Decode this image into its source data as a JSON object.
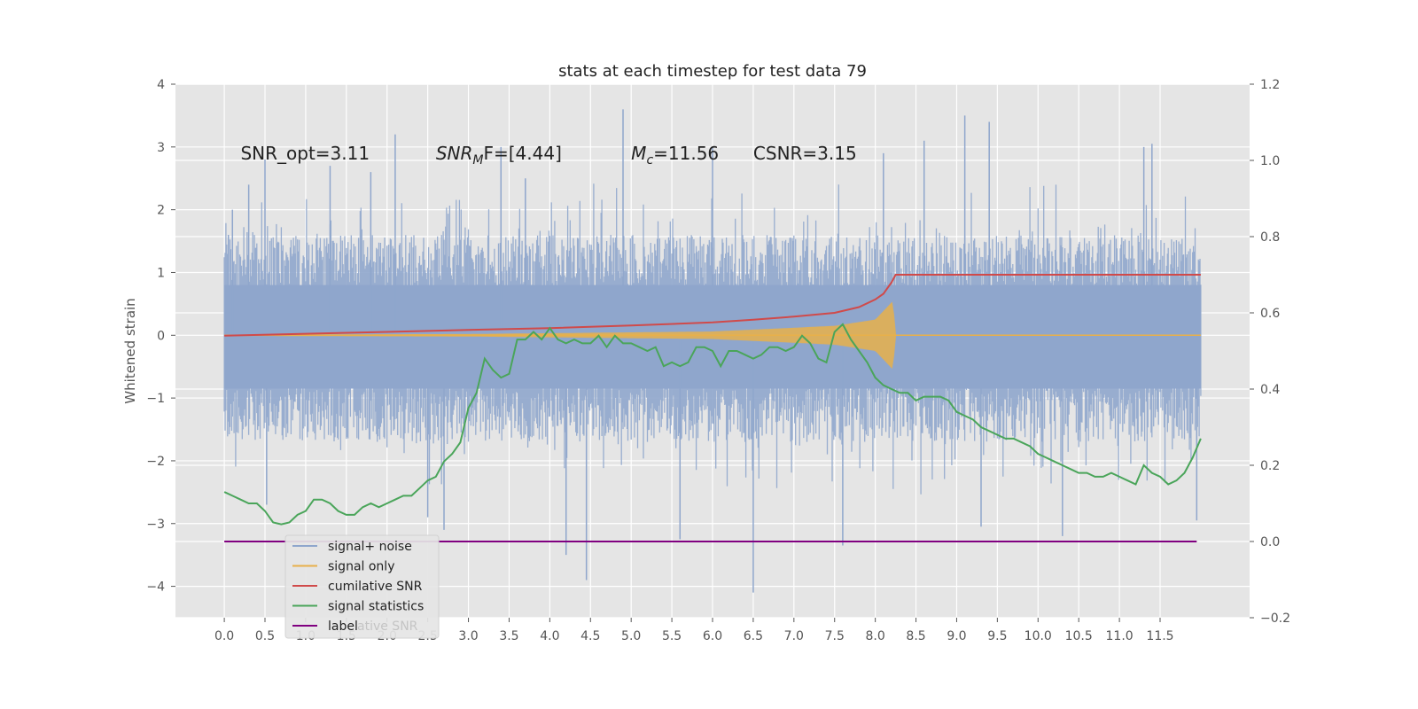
{
  "chart_data": {
    "type": "line",
    "title": "stats at each timestep for test data 79",
    "ylabel": "Whitened strain",
    "xlim": [
      -0.6,
      12.6
    ],
    "ylim": [
      -4.5,
      4.0
    ],
    "y2lim": [
      -0.2,
      1.2
    ],
    "grid": true,
    "xticks": [
      "0.0",
      "0.5",
      "1.0",
      "1.5",
      "2.0",
      "2.5",
      "3.0",
      "3.5",
      "4.0",
      "4.5",
      "5.0",
      "5.5",
      "6.0",
      "6.5",
      "7.0",
      "7.5",
      "8.0",
      "8.5",
      "9.0",
      "9.5",
      "10.0",
      "10.5",
      "11.0",
      "11.5"
    ],
    "yticks": [
      "4",
      "3",
      "2",
      "1",
      "0",
      "−1",
      "−2",
      "−3",
      "−4"
    ],
    "y2ticks": [
      "1.2",
      "1.0",
      "0.8",
      "0.6",
      "0.4",
      "0.2",
      "0.0",
      "−0.2"
    ],
    "annotations": [
      {
        "label": "SNR_opt=3.11",
        "x": 0.2,
        "y": 2.8
      },
      {
        "label": "SNR",
        "sub": "M",
        "rest": "F=[4.44]",
        "italic": true,
        "x": 2.6,
        "y": 2.8
      },
      {
        "label": "M",
        "sub": "c",
        "rest": "=11.56",
        "italic": true,
        "x": 5.0,
        "y": 2.8
      },
      {
        "label": "CSNR=3.15",
        "x": 6.5,
        "y": 2.8
      }
    ],
    "series": [
      {
        "name": "signal+ noise",
        "color": "#8fa6cc",
        "axis": "left",
        "x_range": [
          0,
          12
        ],
        "envelope": {
          "typical_low": -1.7,
          "typical_high": 1.6
        },
        "spikes": [
          {
            "x": 0.05,
            "y": 1.6
          },
          {
            "x": 0.1,
            "y": 2.0
          },
          {
            "x": 0.3,
            "y": 2.4
          },
          {
            "x": 0.5,
            "y": 2.8
          },
          {
            "x": 0.52,
            "y": -2.7
          },
          {
            "x": 1.3,
            "y": 2.7
          },
          {
            "x": 1.8,
            "y": 2.6
          },
          {
            "x": 2.1,
            "y": 3.2
          },
          {
            "x": 2.5,
            "y": -2.9
          },
          {
            "x": 2.7,
            "y": -3.1
          },
          {
            "x": 3.4,
            "y": 3.0
          },
          {
            "x": 3.7,
            "y": 2.5
          },
          {
            "x": 4.2,
            "y": -3.5
          },
          {
            "x": 4.45,
            "y": -3.9
          },
          {
            "x": 4.9,
            "y": 3.6
          },
          {
            "x": 5.6,
            "y": -3.25
          },
          {
            "x": 6.0,
            "y": 3.0
          },
          {
            "x": 6.5,
            "y": -4.1
          },
          {
            "x": 7.6,
            "y": -3.35
          },
          {
            "x": 8.1,
            "y": 2.9
          },
          {
            "x": 8.6,
            "y": 3.1
          },
          {
            "x": 9.1,
            "y": 3.5
          },
          {
            "x": 9.3,
            "y": -3.05
          },
          {
            "x": 9.4,
            "y": 3.4
          },
          {
            "x": 10.3,
            "y": -3.2
          },
          {
            "x": 11.3,
            "y": 3.0
          },
          {
            "x": 11.4,
            "y": 3.05
          },
          {
            "x": 11.95,
            "y": -2.95
          }
        ]
      },
      {
        "name": "signal only",
        "color": "#e8b04a",
        "axis": "left",
        "x_range": [
          0,
          12
        ],
        "amplitude": [
          [
            0,
            0.01
          ],
          [
            3.0,
            0.02
          ],
          [
            6.0,
            0.06
          ],
          [
            7.5,
            0.15
          ],
          [
            8.0,
            0.25
          ],
          [
            8.22,
            0.55
          ],
          [
            8.25,
            0.0
          ],
          [
            12,
            0.0
          ]
        ]
      },
      {
        "name": "cumilative SNR",
        "color": "#d04a4a",
        "axis": "right",
        "x": [
          0,
          1,
          2,
          3,
          4,
          5,
          6,
          6.5,
          7,
          7.5,
          7.8,
          8.0,
          8.1,
          8.2,
          8.25,
          12
        ],
        "y": [
          0.54,
          0.545,
          0.55,
          0.555,
          0.56,
          0.567,
          0.575,
          0.582,
          0.59,
          0.6,
          0.615,
          0.635,
          0.65,
          0.68,
          0.7,
          0.7
        ]
      },
      {
        "name": "signal statistics",
        "color": "#4aa55a",
        "axis": "right",
        "x": [
          0,
          0.1,
          0.2,
          0.3,
          0.4,
          0.5,
          0.6,
          0.7,
          0.8,
          0.9,
          1.0,
          1.1,
          1.2,
          1.3,
          1.4,
          1.5,
          1.6,
          1.7,
          1.8,
          1.9,
          2.0,
          2.1,
          2.2,
          2.3,
          2.4,
          2.5,
          2.6,
          2.7,
          2.8,
          2.9,
          3.0,
          3.1,
          3.2,
          3.3,
          3.4,
          3.5,
          3.6,
          3.7,
          3.8,
          3.9,
          4.0,
          4.1,
          4.2,
          4.3,
          4.4,
          4.5,
          4.6,
          4.7,
          4.8,
          4.9,
          5.0,
          5.1,
          5.2,
          5.3,
          5.4,
          5.5,
          5.6,
          5.7,
          5.8,
          5.9,
          6.0,
          6.1,
          6.2,
          6.3,
          6.4,
          6.5,
          6.6,
          6.7,
          6.8,
          6.9,
          7.0,
          7.1,
          7.2,
          7.3,
          7.4,
          7.5,
          7.6,
          7.7,
          7.8,
          7.9,
          8.0,
          8.1,
          8.2,
          8.3,
          8.4,
          8.5,
          8.6,
          8.7,
          8.8,
          8.9,
          9.0,
          9.1,
          9.2,
          9.3,
          9.4,
          9.5,
          9.6,
          9.7,
          9.8,
          9.9,
          10.0,
          10.1,
          10.2,
          10.3,
          10.4,
          10.5,
          10.6,
          10.7,
          10.8,
          10.9,
          11.0,
          11.1,
          11.2,
          11.3,
          11.4,
          11.5,
          11.6,
          11.7,
          11.8,
          11.9,
          12.0
        ],
        "y": [
          0.13,
          0.12,
          0.11,
          0.1,
          0.1,
          0.08,
          0.05,
          0.045,
          0.05,
          0.07,
          0.08,
          0.11,
          0.11,
          0.1,
          0.08,
          0.07,
          0.07,
          0.09,
          0.1,
          0.09,
          0.1,
          0.11,
          0.12,
          0.12,
          0.14,
          0.16,
          0.17,
          0.21,
          0.23,
          0.26,
          0.35,
          0.39,
          0.48,
          0.45,
          0.43,
          0.44,
          0.53,
          0.53,
          0.55,
          0.53,
          0.56,
          0.53,
          0.52,
          0.53,
          0.52,
          0.52,
          0.54,
          0.51,
          0.54,
          0.52,
          0.52,
          0.51,
          0.5,
          0.51,
          0.46,
          0.47,
          0.46,
          0.47,
          0.51,
          0.51,
          0.5,
          0.46,
          0.5,
          0.5,
          0.49,
          0.48,
          0.49,
          0.51,
          0.51,
          0.5,
          0.51,
          0.54,
          0.52,
          0.48,
          0.47,
          0.55,
          0.57,
          0.53,
          0.5,
          0.47,
          0.43,
          0.41,
          0.4,
          0.39,
          0.39,
          0.37,
          0.38,
          0.38,
          0.38,
          0.37,
          0.34,
          0.33,
          0.32,
          0.3,
          0.29,
          0.28,
          0.27,
          0.27,
          0.26,
          0.25,
          0.23,
          0.22,
          0.21,
          0.2,
          0.19,
          0.18,
          0.18,
          0.17,
          0.17,
          0.18,
          0.17,
          0.16,
          0.15,
          0.2,
          0.18,
          0.17,
          0.15,
          0.16,
          0.18,
          0.22,
          0.27
        ]
      },
      {
        "name": "label",
        "color": "#800080",
        "axis": "right",
        "x": [
          0,
          11.95
        ],
        "y": [
          0.0,
          0.0
        ]
      }
    ],
    "legend": {
      "placement": "lower-left",
      "entries": [
        "signal+ noise",
        "signal only",
        "cumilative SNR",
        "signal statistics",
        "label"
      ],
      "overlap_text": "ative SNR"
    }
  }
}
